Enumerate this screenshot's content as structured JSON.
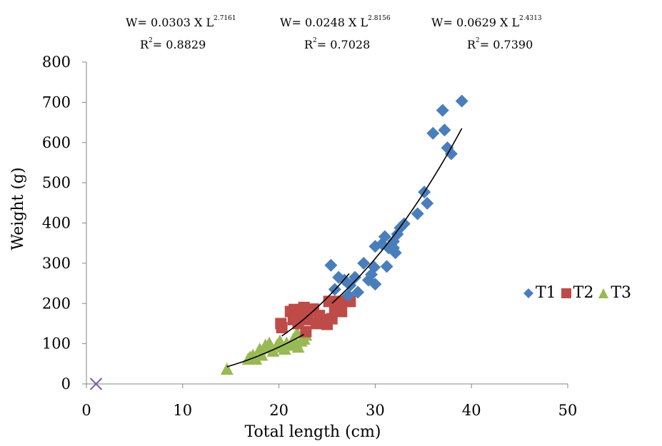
{
  "chart_data": {
    "type": "scatter",
    "title": "",
    "xlabel": "Total length (cm)",
    "ylabel": "Weight (g)",
    "xlim": [
      0,
      50
    ],
    "ylim": [
      0,
      800
    ],
    "x_ticks": [
      "0",
      "10",
      "20",
      "30",
      "40",
      "50"
    ],
    "y_ticks": [
      "0",
      "100",
      "200",
      "300",
      "400",
      "500",
      "600",
      "700",
      "800"
    ],
    "grid": false,
    "legend_position": "right",
    "series": [
      {
        "name": "T1",
        "marker": "diamond",
        "color": "#4a7ebb",
        "points": [
          [
            25.4,
            295
          ],
          [
            26.2,
            265
          ],
          [
            26.8,
            258
          ],
          [
            27.4,
            245
          ],
          [
            27.9,
            265
          ],
          [
            28.2,
            228
          ],
          [
            28.8,
            300
          ],
          [
            29.3,
            258
          ],
          [
            29.6,
            272
          ],
          [
            30.0,
            248
          ],
          [
            29.9,
            290
          ],
          [
            30.0,
            342
          ],
          [
            30.7,
            348
          ],
          [
            31.0,
            366
          ],
          [
            31.2,
            292
          ],
          [
            31.4,
            338
          ],
          [
            31.9,
            338
          ],
          [
            31.9,
            354
          ],
          [
            32.1,
            326
          ],
          [
            32.3,
            372
          ],
          [
            32.6,
            388
          ],
          [
            33.0,
            398
          ],
          [
            34.4,
            423
          ],
          [
            35.1,
            477
          ],
          [
            35.4,
            449
          ],
          [
            36.0,
            623
          ],
          [
            37.0,
            680
          ],
          [
            37.2,
            631
          ],
          [
            37.5,
            587
          ],
          [
            37.9,
            572
          ],
          [
            39.0,
            703
          ],
          [
            25.8,
            235
          ],
          [
            27.2,
            220
          ]
        ]
      },
      {
        "name": "T2",
        "marker": "square",
        "color": "#be4b48",
        "points": [
          [
            20.2,
            150
          ],
          [
            20.3,
            140
          ],
          [
            21.2,
            180
          ],
          [
            21.6,
            185
          ],
          [
            21.8,
            165
          ],
          [
            22.0,
            150
          ],
          [
            22.4,
            175
          ],
          [
            22.8,
            130
          ],
          [
            23.0,
            160
          ],
          [
            23.2,
            184
          ],
          [
            23.6,
            186
          ],
          [
            23.9,
            150
          ],
          [
            24.2,
            170
          ],
          [
            24.6,
            160
          ],
          [
            25.0,
            148
          ],
          [
            25.2,
            205
          ],
          [
            25.5,
            162
          ],
          [
            25.8,
            185
          ],
          [
            26.1,
            205
          ],
          [
            26.5,
            180
          ],
          [
            27.0,
            205
          ],
          [
            27.4,
            205
          ],
          [
            21.5,
            160
          ],
          [
            22.6,
            190
          ]
        ]
      },
      {
        "name": "T3",
        "marker": "triangle",
        "color": "#98b954",
        "points": [
          [
            14.6,
            35
          ],
          [
            16.8,
            60
          ],
          [
            17.3,
            70
          ],
          [
            17.6,
            60
          ],
          [
            18.0,
            85
          ],
          [
            18.2,
            70
          ],
          [
            18.6,
            95
          ],
          [
            19.0,
            100
          ],
          [
            19.4,
            80
          ],
          [
            19.8,
            95
          ],
          [
            20.1,
            105
          ],
          [
            20.4,
            90
          ],
          [
            20.8,
            100
          ],
          [
            21.2,
            95
          ],
          [
            21.5,
            110
          ],
          [
            21.8,
            100
          ],
          [
            22.0,
            90
          ],
          [
            22.3,
            105
          ],
          [
            22.6,
            110
          ],
          [
            22.8,
            120
          ],
          [
            17.0,
            65
          ],
          [
            18.8,
            88
          ],
          [
            20.6,
            85
          ],
          [
            21.9,
            125
          ]
        ]
      },
      {
        "name": "",
        "marker": "x",
        "color": "#7e5ea8",
        "points": [
          [
            1.0,
            0
          ]
        ]
      }
    ],
    "trendlines": [
      {
        "series": "T1",
        "a": 0.0303,
        "b": 2.7161,
        "x_range": [
          25.5,
          39.0
        ]
      },
      {
        "series": "T2",
        "a": 0.0248,
        "b": 2.8156,
        "x_range": [
          20.3,
          27.3
        ]
      },
      {
        "series": "T3",
        "a": 0.0629,
        "b": 2.4313,
        "x_range": [
          14.6,
          22.6
        ]
      }
    ],
    "annotations": [
      {
        "formula_base": "W= 0.0303 X L",
        "exponent": "2.7161",
        "r2_base": "R",
        "r2_sup": "2",
        "r2_value": "= 0.8829"
      },
      {
        "formula_base": "W= 0.0248 X L",
        "exponent": "2.8156",
        "r2_base": "R",
        "r2_sup": "2",
        "r2_value": "= 0.7028"
      },
      {
        "formula_base": "W= 0.0629 X L",
        "exponent": "2.4313",
        "r2_base": "R",
        "r2_sup": "2",
        "r2_value": "= 0.7390"
      }
    ]
  }
}
